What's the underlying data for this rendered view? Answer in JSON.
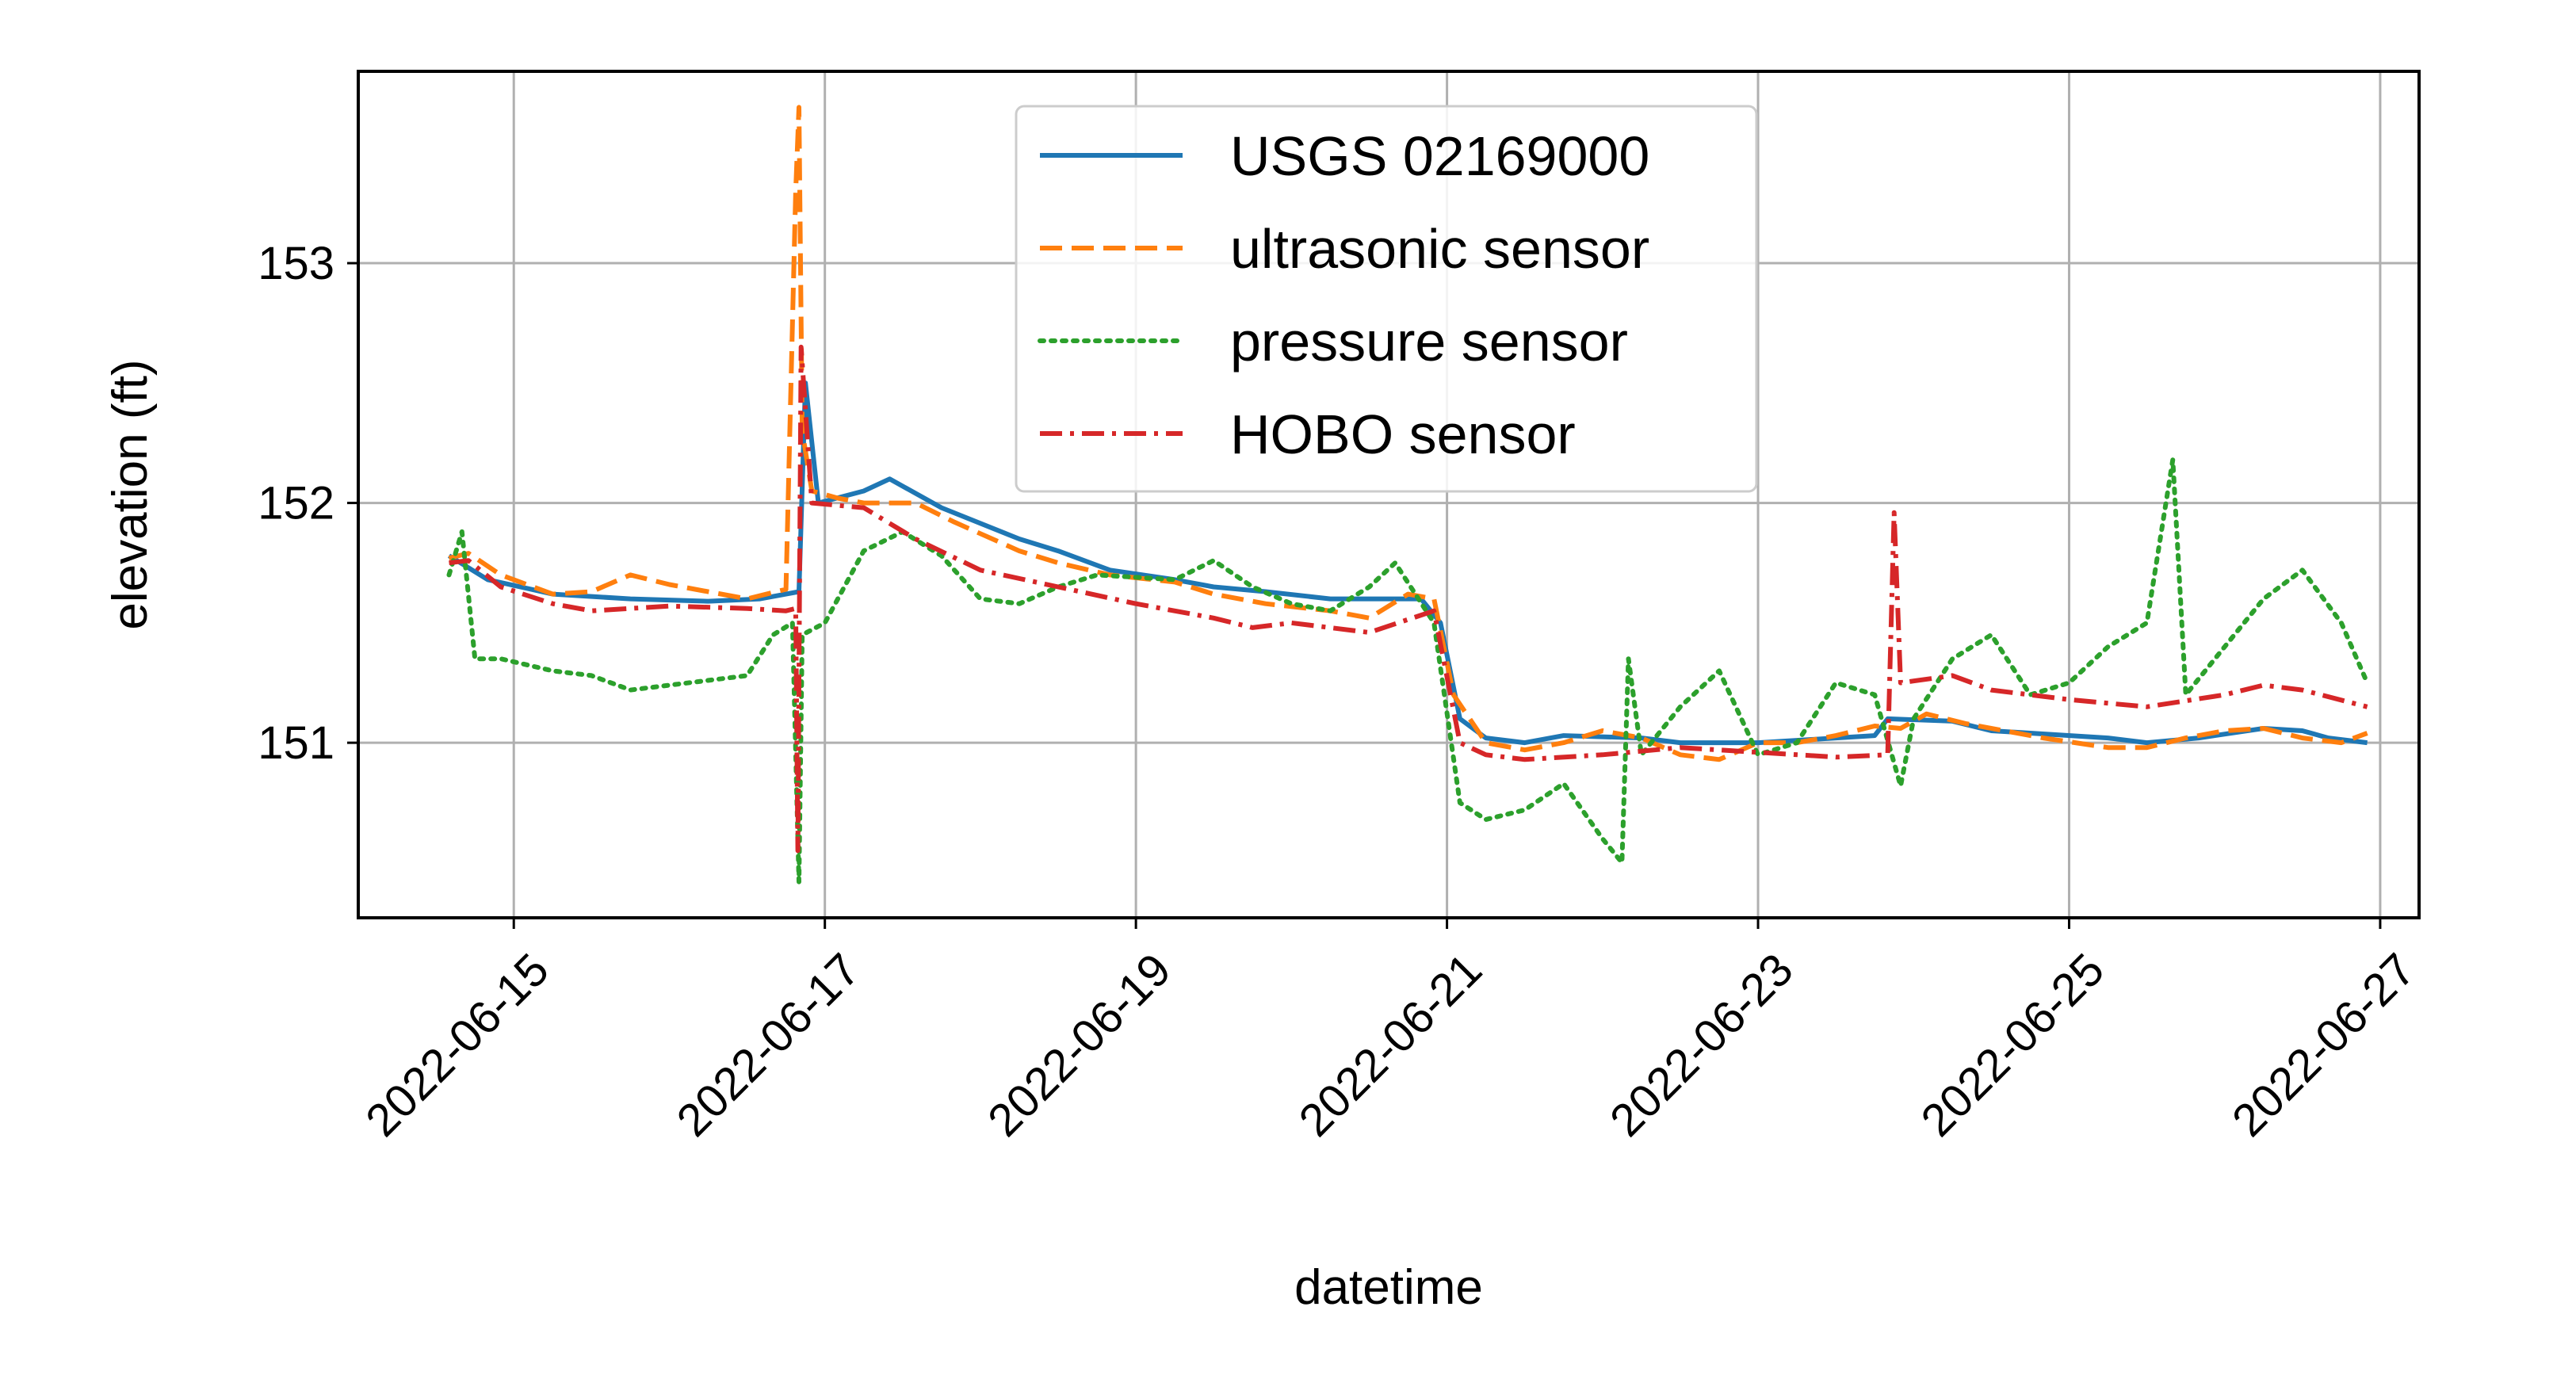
{
  "chart_data": {
    "type": "line",
    "title": "",
    "xlabel": "datetime",
    "ylabel": "elevation (ft)",
    "x_type": "date",
    "xlim": [
      "2022-06-14T00:00",
      "2022-06-27T06:00"
    ],
    "ylim": [
      150.27,
      153.8
    ],
    "grid": true,
    "legend_position": "top-center",
    "x_ticks": [
      {
        "value": "2022-06-15",
        "label": "2022-06-15"
      },
      {
        "value": "2022-06-17",
        "label": "2022-06-17"
      },
      {
        "value": "2022-06-19",
        "label": "2022-06-19"
      },
      {
        "value": "2022-06-21",
        "label": "2022-06-21"
      },
      {
        "value": "2022-06-23",
        "label": "2022-06-23"
      },
      {
        "value": "2022-06-25",
        "label": "2022-06-25"
      },
      {
        "value": "2022-06-27",
        "label": "2022-06-27"
      }
    ],
    "y_ticks": [
      {
        "value": 151,
        "label": "151"
      },
      {
        "value": 152,
        "label": "152"
      },
      {
        "value": 153,
        "label": "153"
      }
    ],
    "series": [
      {
        "name": "USGS 02169000",
        "color": "#1f77b4",
        "style": "solid",
        "points": [
          [
            "2022-06-14T14:00",
            151.78
          ],
          [
            "2022-06-14T20:00",
            151.68
          ],
          [
            "2022-06-15T06:00",
            151.62
          ],
          [
            "2022-06-15T18:00",
            151.6
          ],
          [
            "2022-06-16T06:00",
            151.59
          ],
          [
            "2022-06-16T14:00",
            151.6
          ],
          [
            "2022-06-16T18:00",
            151.62
          ],
          [
            "2022-06-16T20:00",
            151.63
          ],
          [
            "2022-06-16T21:00",
            152.5
          ],
          [
            "2022-06-16T23:00",
            152.0
          ],
          [
            "2022-06-17T06:00",
            152.05
          ],
          [
            "2022-06-17T10:00",
            152.1
          ],
          [
            "2022-06-17T18:00",
            151.98
          ],
          [
            "2022-06-18T06:00",
            151.85
          ],
          [
            "2022-06-18T12:00",
            151.8
          ],
          [
            "2022-06-18T20:00",
            151.72
          ],
          [
            "2022-06-19T06:00",
            151.68
          ],
          [
            "2022-06-19T12:00",
            151.65
          ],
          [
            "2022-06-19T20:00",
            151.63
          ],
          [
            "2022-06-20T06:00",
            151.6
          ],
          [
            "2022-06-20T12:00",
            151.6
          ],
          [
            "2022-06-20T20:00",
            151.6
          ],
          [
            "2022-06-20T23:00",
            151.5
          ],
          [
            "2022-06-21T02:00",
            151.1
          ],
          [
            "2022-06-21T06:00",
            151.02
          ],
          [
            "2022-06-21T12:00",
            151.0
          ],
          [
            "2022-06-21T18:00",
            151.03
          ],
          [
            "2022-06-22T06:00",
            151.02
          ],
          [
            "2022-06-22T12:00",
            151.0
          ],
          [
            "2022-06-23T00:00",
            151.0
          ],
          [
            "2022-06-23T06:00",
            151.01
          ],
          [
            "2022-06-23T12:00",
            151.02
          ],
          [
            "2022-06-23T18:00",
            151.03
          ],
          [
            "2022-06-23T20:00",
            151.1
          ],
          [
            "2022-06-24T06:00",
            151.09
          ],
          [
            "2022-06-24T12:00",
            151.05
          ],
          [
            "2022-06-24T18:00",
            151.04
          ],
          [
            "2022-06-25T06:00",
            151.02
          ],
          [
            "2022-06-25T12:00",
            151.0
          ],
          [
            "2022-06-25T20:00",
            151.02
          ],
          [
            "2022-06-26T06:00",
            151.06
          ],
          [
            "2022-06-26T12:00",
            151.05
          ],
          [
            "2022-06-26T16:00",
            151.02
          ],
          [
            "2022-06-26T22:00",
            151.0
          ]
        ]
      },
      {
        "name": "ultrasonic sensor",
        "color": "#ff7f0e",
        "style": "dashed",
        "points": [
          [
            "2022-06-14T14:00",
            151.77
          ],
          [
            "2022-06-14T17:00",
            151.79
          ],
          [
            "2022-06-14T22:00",
            151.7
          ],
          [
            "2022-06-15T06:00",
            151.62
          ],
          [
            "2022-06-15T12:00",
            151.63
          ],
          [
            "2022-06-15T18:00",
            151.7
          ],
          [
            "2022-06-16T00:00",
            151.66
          ],
          [
            "2022-06-16T12:00",
            151.6
          ],
          [
            "2022-06-16T18:00",
            151.64
          ],
          [
            "2022-06-16T19:30",
            153.3
          ],
          [
            "2022-06-16T20:00",
            153.65
          ],
          [
            "2022-06-16T20:30",
            152.3
          ],
          [
            "2022-06-16T22:00",
            152.05
          ],
          [
            "2022-06-17T02:00",
            152.02
          ],
          [
            "2022-06-17T06:00",
            152.0
          ],
          [
            "2022-06-17T14:00",
            152.0
          ],
          [
            "2022-06-17T20:00",
            151.92
          ],
          [
            "2022-06-18T06:00",
            151.8
          ],
          [
            "2022-06-18T12:00",
            151.75
          ],
          [
            "2022-06-18T20:00",
            151.7
          ],
          [
            "2022-06-19T06:00",
            151.67
          ],
          [
            "2022-06-19T12:00",
            151.62
          ],
          [
            "2022-06-19T20:00",
            151.58
          ],
          [
            "2022-06-20T06:00",
            151.55
          ],
          [
            "2022-06-20T12:00",
            151.52
          ],
          [
            "2022-06-20T18:00",
            151.62
          ],
          [
            "2022-06-20T22:00",
            151.6
          ],
          [
            "2022-06-21T01:00",
            151.2
          ],
          [
            "2022-06-21T06:00",
            151.0
          ],
          [
            "2022-06-21T12:00",
            150.97
          ],
          [
            "2022-06-21T18:00",
            151.0
          ],
          [
            "2022-06-22T00:00",
            151.05
          ],
          [
            "2022-06-22T06:00",
            151.02
          ],
          [
            "2022-06-22T12:00",
            150.95
          ],
          [
            "2022-06-22T18:00",
            150.93
          ],
          [
            "2022-06-23T00:00",
            151.0
          ],
          [
            "2022-06-23T06:00",
            151.0
          ],
          [
            "2022-06-23T12:00",
            151.03
          ],
          [
            "2022-06-23T18:00",
            151.07
          ],
          [
            "2022-06-23T22:00",
            151.06
          ],
          [
            "2022-06-24T02:00",
            151.12
          ],
          [
            "2022-06-24T08:00",
            151.08
          ],
          [
            "2022-06-24T14:00",
            151.05
          ],
          [
            "2022-06-24T20:00",
            151.02
          ],
          [
            "2022-06-25T06:00",
            150.98
          ],
          [
            "2022-06-25T12:00",
            150.98
          ],
          [
            "2022-06-25T18:00",
            151.02
          ],
          [
            "2022-06-26T00:00",
            151.05
          ],
          [
            "2022-06-26T06:00",
            151.06
          ],
          [
            "2022-06-26T12:00",
            151.02
          ],
          [
            "2022-06-26T18:00",
            151.0
          ],
          [
            "2022-06-26T22:00",
            151.04
          ]
        ]
      },
      {
        "name": "pressure sensor",
        "color": "#2ca02c",
        "style": "dotted",
        "points": [
          [
            "2022-06-14T14:00",
            151.7
          ],
          [
            "2022-06-14T16:00",
            151.88
          ],
          [
            "2022-06-14T18:00",
            151.35
          ],
          [
            "2022-06-14T22:00",
            151.35
          ],
          [
            "2022-06-15T06:00",
            151.3
          ],
          [
            "2022-06-15T12:00",
            151.28
          ],
          [
            "2022-06-15T18:00",
            151.22
          ],
          [
            "2022-06-16T00:00",
            151.24
          ],
          [
            "2022-06-16T12:00",
            151.28
          ],
          [
            "2022-06-16T16:00",
            151.45
          ],
          [
            "2022-06-16T19:00",
            151.5
          ],
          [
            "2022-06-16T20:00",
            150.42
          ],
          [
            "2022-06-16T20:30",
            151.45
          ],
          [
            "2022-06-17T00:00",
            151.5
          ],
          [
            "2022-06-17T06:00",
            151.8
          ],
          [
            "2022-06-17T12:00",
            151.88
          ],
          [
            "2022-06-17T18:00",
            151.78
          ],
          [
            "2022-06-18T00:00",
            151.6
          ],
          [
            "2022-06-18T06:00",
            151.58
          ],
          [
            "2022-06-18T12:00",
            151.65
          ],
          [
            "2022-06-18T18:00",
            151.7
          ],
          [
            "2022-06-19T06:00",
            151.68
          ],
          [
            "2022-06-19T12:00",
            151.76
          ],
          [
            "2022-06-19T18:00",
            151.65
          ],
          [
            "2022-06-20T00:00",
            151.58
          ],
          [
            "2022-06-20T06:00",
            151.55
          ],
          [
            "2022-06-20T12:00",
            151.65
          ],
          [
            "2022-06-20T16:00",
            151.75
          ],
          [
            "2022-06-20T22:00",
            151.5
          ],
          [
            "2022-06-21T02:00",
            150.75
          ],
          [
            "2022-06-21T06:00",
            150.68
          ],
          [
            "2022-06-21T12:00",
            150.72
          ],
          [
            "2022-06-21T18:00",
            150.83
          ],
          [
            "2022-06-22T00:00",
            150.6
          ],
          [
            "2022-06-22T03:00",
            150.5
          ],
          [
            "2022-06-22T04:00",
            151.35
          ],
          [
            "2022-06-22T06:00",
            150.95
          ],
          [
            "2022-06-22T12:00",
            151.15
          ],
          [
            "2022-06-22T18:00",
            151.3
          ],
          [
            "2022-06-23T00:00",
            150.95
          ],
          [
            "2022-06-23T06:00",
            151.0
          ],
          [
            "2022-06-23T12:00",
            151.25
          ],
          [
            "2022-06-23T18:00",
            151.2
          ],
          [
            "2022-06-23T22:00",
            150.82
          ],
          [
            "2022-06-24T00:00",
            151.1
          ],
          [
            "2022-06-24T06:00",
            151.35
          ],
          [
            "2022-06-24T12:00",
            151.45
          ],
          [
            "2022-06-24T18:00",
            151.2
          ],
          [
            "2022-06-25T00:00",
            151.25
          ],
          [
            "2022-06-25T06:00",
            151.4
          ],
          [
            "2022-06-25T12:00",
            151.5
          ],
          [
            "2022-06-25T16:00",
            152.18
          ],
          [
            "2022-06-25T18:00",
            151.2
          ],
          [
            "2022-06-26T00:00",
            151.4
          ],
          [
            "2022-06-26T06:00",
            151.6
          ],
          [
            "2022-06-26T12:00",
            151.72
          ],
          [
            "2022-06-26T18:00",
            151.5
          ],
          [
            "2022-06-26T22:00",
            151.25
          ]
        ]
      },
      {
        "name": "HOBO sensor",
        "color": "#d62728",
        "style": "dashdot",
        "points": [
          [
            "2022-06-14T14:00",
            151.75
          ],
          [
            "2022-06-14T17:00",
            151.76
          ],
          [
            "2022-06-14T22:00",
            151.65
          ],
          [
            "2022-06-15T06:00",
            151.58
          ],
          [
            "2022-06-15T12:00",
            151.55
          ],
          [
            "2022-06-15T18:00",
            151.56
          ],
          [
            "2022-06-16T00:00",
            151.57
          ],
          [
            "2022-06-16T12:00",
            151.56
          ],
          [
            "2022-06-16T18:00",
            151.55
          ],
          [
            "2022-06-16T19:30",
            151.56
          ],
          [
            "2022-06-16T19:50",
            150.55
          ],
          [
            "2022-06-16T20:20",
            152.65
          ],
          [
            "2022-06-16T22:00",
            152.0
          ],
          [
            "2022-06-17T06:00",
            151.98
          ],
          [
            "2022-06-17T14:00",
            151.85
          ],
          [
            "2022-06-18T00:00",
            151.72
          ],
          [
            "2022-06-18T12:00",
            151.65
          ],
          [
            "2022-06-19T00:00",
            151.58
          ],
          [
            "2022-06-19T12:00",
            151.52
          ],
          [
            "2022-06-19T18:00",
            151.48
          ],
          [
            "2022-06-20T00:00",
            151.5
          ],
          [
            "2022-06-20T12:00",
            151.46
          ],
          [
            "2022-06-20T22:00",
            151.55
          ],
          [
            "2022-06-21T02:00",
            151.0
          ],
          [
            "2022-06-21T06:00",
            150.95
          ],
          [
            "2022-06-21T12:00",
            150.93
          ],
          [
            "2022-06-22T00:00",
            150.95
          ],
          [
            "2022-06-22T12:00",
            150.98
          ],
          [
            "2022-06-23T00:00",
            150.96
          ],
          [
            "2022-06-23T12:00",
            150.94
          ],
          [
            "2022-06-23T20:00",
            150.95
          ],
          [
            "2022-06-23T21:00",
            151.96
          ],
          [
            "2022-06-23T22:00",
            151.25
          ],
          [
            "2022-06-24T06:00",
            151.28
          ],
          [
            "2022-06-24T12:00",
            151.22
          ],
          [
            "2022-06-25T00:00",
            151.18
          ],
          [
            "2022-06-25T12:00",
            151.15
          ],
          [
            "2022-06-26T00:00",
            151.2
          ],
          [
            "2022-06-26T06:00",
            151.24
          ],
          [
            "2022-06-26T12:00",
            151.22
          ],
          [
            "2022-06-26T22:00",
            151.15
          ]
        ]
      }
    ]
  }
}
